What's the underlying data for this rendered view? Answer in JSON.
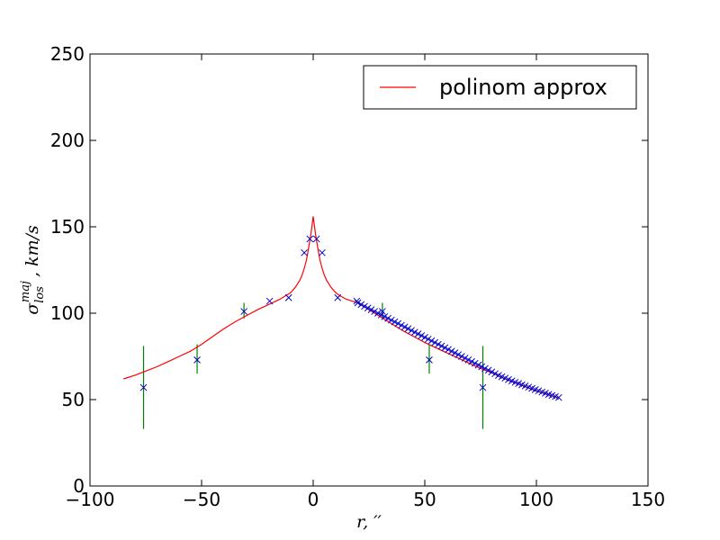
{
  "chart_data": {
    "type": "scatter",
    "title": "",
    "xlabel": "r, ''",
    "ylabel": "σ_los^maj , km/s",
    "xlim": [
      -100,
      150
    ],
    "ylim": [
      0,
      250
    ],
    "x_ticks": [
      -100,
      -50,
      0,
      50,
      100,
      150
    ],
    "y_ticks": [
      0,
      50,
      100,
      150,
      200,
      250
    ],
    "grid": false,
    "legend_position": "top-right",
    "colors": {
      "fit": "#ff0000",
      "points": "#0000cc",
      "errorbars": "#007f00"
    },
    "series": [
      {
        "name": "polinom approx",
        "kind": "line",
        "x": [
          -85,
          -80,
          -75,
          -70,
          -65,
          -60,
          -55,
          -50,
          -45,
          -40,
          -35,
          -30,
          -25,
          -20,
          -15,
          -10,
          -8,
          -6,
          -5,
          -4,
          -3,
          -2,
          -1,
          0,
          1,
          2,
          3,
          4,
          5,
          6,
          8,
          10,
          12,
          15,
          20,
          25,
          30,
          35,
          40,
          45,
          50,
          55,
          60,
          65,
          70,
          75,
          80,
          85,
          90,
          95,
          100,
          105,
          110
        ],
        "y": [
          62,
          64,
          66.5,
          69,
          72,
          75,
          78,
          82,
          86.5,
          91,
          95,
          98.5,
          102,
          105,
          108,
          112,
          115,
          119,
          122,
          126,
          131,
          138,
          146,
          156,
          146,
          138,
          131,
          126,
          122,
          119,
          115,
          112,
          110,
          108,
          106,
          102,
          98,
          94,
          90,
          86.5,
          83,
          80,
          77,
          74,
          71,
          68,
          65.5,
          62.5,
          60,
          57.5,
          55,
          53,
          51
        ]
      },
      {
        "kind": "scatter",
        "marker": "x",
        "x": [
          -76,
          -52,
          -31,
          -19.5,
          -11,
          -4,
          -1.5,
          1.5,
          4,
          11,
          19.5,
          31,
          52,
          76
        ],
        "y": [
          57,
          73,
          101,
          107,
          109,
          135,
          143,
          143,
          135,
          109,
          107,
          101,
          73,
          57
        ]
      },
      {
        "kind": "scatter",
        "marker": "x",
        "x": [
          20,
          21.5,
          23,
          24.5,
          26,
          27.5,
          29,
          30.5,
          32,
          33.5,
          35,
          36.5,
          38,
          39.5,
          41,
          42.5,
          44,
          45.5,
          47,
          48.5,
          50,
          51.5,
          53,
          54.5,
          56,
          57.5,
          59,
          60.5,
          62,
          63.5,
          65,
          66.5,
          68,
          69.5,
          71,
          72.5,
          74,
          75.5,
          77,
          78.5,
          80,
          81.5,
          83,
          84.5,
          86,
          87.5,
          89,
          90.5,
          92,
          93.5,
          95,
          96.5,
          98,
          99.5,
          101,
          102.5,
          104,
          105.5,
          107,
          108.5,
          110
        ],
        "y": [
          106,
          105,
          104,
          103,
          102,
          101,
          100,
          99,
          98,
          97,
          96,
          95,
          94,
          93,
          92,
          91,
          90,
          89,
          88,
          87,
          86,
          85,
          84,
          83,
          82,
          81,
          80,
          79,
          78,
          77,
          76,
          75,
          74,
          73,
          72,
          71,
          70,
          69,
          68,
          67,
          66,
          65,
          64,
          63.2,
          62.4,
          61.6,
          60.8,
          60,
          59.3,
          58.6,
          57.9,
          57.2,
          56.5,
          55.8,
          55.1,
          54.4,
          53.7,
          53,
          52.4,
          51.8,
          51.2
        ]
      },
      {
        "kind": "errorbar",
        "x": [
          -76,
          -52,
          -31,
          31,
          52,
          76
        ],
        "low": [
          33,
          65,
          97,
          97,
          65,
          33
        ],
        "high": [
          81,
          82,
          106,
          106,
          82,
          81
        ]
      }
    ]
  }
}
